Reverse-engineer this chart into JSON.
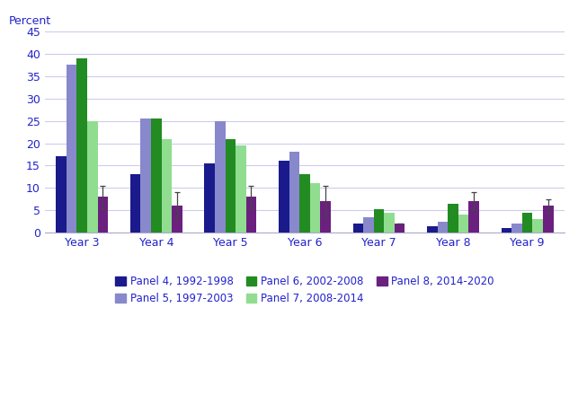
{
  "categories": [
    "Year 3",
    "Year 4",
    "Year 5",
    "Year 6",
    "Year 7",
    "Year 8",
    "Year 9"
  ],
  "series": {
    "Panel 4, 1992-1998": [
      17,
      13,
      15.5,
      16,
      2,
      1.5,
      1
    ],
    "Panel 5, 1997-2003": [
      37.5,
      25.5,
      25,
      18,
      3.5,
      2.5,
      2
    ],
    "Panel 6, 2002-2008": [
      39,
      25.5,
      21,
      13,
      5.3,
      6.5,
      4.5
    ],
    "Panel 7, 2008-2014": [
      25,
      21,
      19.5,
      11,
      4.5,
      4,
      3
    ],
    "Panel 8, 2014-2020": [
      8,
      6,
      8,
      7,
      2,
      7,
      6
    ]
  },
  "error_bars": {
    "Panel 4, 1992-1998": [
      0,
      0,
      0,
      0,
      0,
      0,
      0
    ],
    "Panel 5, 1997-2003": [
      0,
      0,
      0,
      0,
      0,
      0,
      0
    ],
    "Panel 6, 2002-2008": [
      0,
      0,
      0,
      0,
      0,
      0,
      0
    ],
    "Panel 7, 2008-2014": [
      0,
      0,
      0,
      0,
      0,
      0,
      0
    ],
    "Panel 8, 2014-2020": [
      2.5,
      3.0,
      2.5,
      3.5,
      0,
      2.0,
      1.5
    ]
  },
  "colors": {
    "Panel 4, 1992-1998": "#1A1A8C",
    "Panel 5, 1997-2003": "#8888CC",
    "Panel 6, 2002-2008": "#228B22",
    "Panel 7, 2008-2014": "#90DD90",
    "Panel 8, 2014-2020": "#6B2080"
  },
  "ylabel": "Percent",
  "ylim": [
    0,
    45
  ],
  "yticks": [
    0,
    5,
    10,
    15,
    20,
    25,
    30,
    35,
    40,
    45
  ],
  "plot_background": "#FFFFFF",
  "grid_color": "#CCCCEE",
  "text_color": "#2222CC",
  "bar_width": 0.14,
  "legend_order": [
    "Panel 4, 1992-1998",
    "Panel 5, 1997-2003",
    "Panel 6, 2002-2008",
    "Panel 7, 2008-2014",
    "Panel 8, 2014-2020"
  ]
}
